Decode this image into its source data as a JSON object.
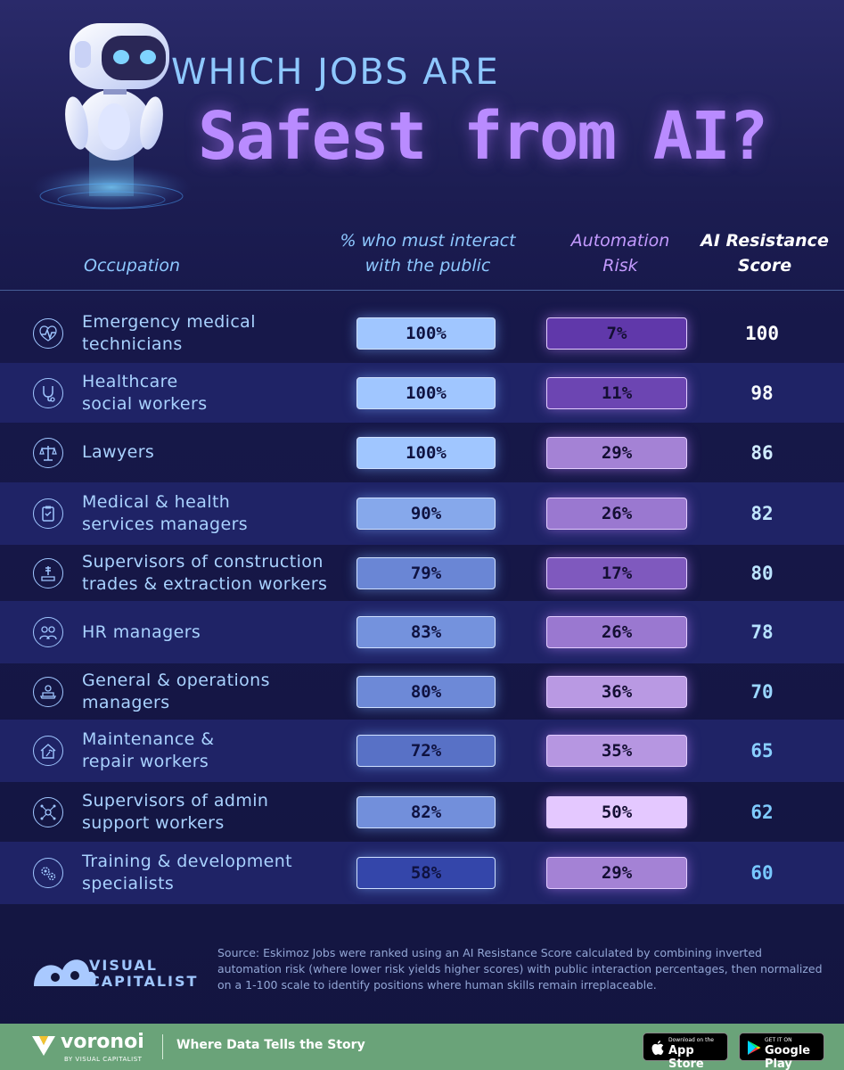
{
  "title": {
    "line1": "WHICH JOBS ARE",
    "line2": "Safest from AI?"
  },
  "headers": {
    "occupation": "Occupation",
    "public": "% who must interact\nwith the public",
    "risk": "Automation\nRisk",
    "score": "AI Resistance\nScore"
  },
  "colors": {
    "background": "#14163a",
    "title_accent": "#b98bff",
    "header_blue": "#8ec8ff",
    "alt_row": "#1f2366",
    "footer": "#6aa379"
  },
  "chart_data": {
    "type": "table",
    "title": "WHICH JOBS ARE Safest from AI?",
    "columns": [
      "Occupation",
      "% who must interact with the public",
      "Automation Risk",
      "AI Resistance Score"
    ],
    "rows": [
      {
        "occupation": "Emergency medical\ntechnicians",
        "public": "100%",
        "public_value": 100,
        "risk": "7%",
        "risk_value": 7,
        "score": "100",
        "score_value": 100,
        "icon": "heartbeat-icon"
      },
      {
        "occupation": "Healthcare\nsocial workers",
        "public": "100%",
        "public_value": 100,
        "risk": "11%",
        "risk_value": 11,
        "score": "98",
        "score_value": 98,
        "icon": "stethoscope-icon"
      },
      {
        "occupation": "Lawyers",
        "public": "100%",
        "public_value": 100,
        "risk": "29%",
        "risk_value": 29,
        "score": "86",
        "score_value": 86,
        "icon": "scales-icon"
      },
      {
        "occupation": "Medical & health\nservices managers",
        "public": "90%",
        "public_value": 90,
        "risk": "26%",
        "risk_value": 26,
        "score": "82",
        "score_value": 82,
        "icon": "clipboard-icon"
      },
      {
        "occupation": "Supervisors of construction\ntrades & extraction workers",
        "public": "79%",
        "public_value": 79,
        "risk": "17%",
        "risk_value": 17,
        "score": "80",
        "score_value": 80,
        "icon": "drill-icon"
      },
      {
        "occupation": "HR managers",
        "public": "83%",
        "public_value": 83,
        "risk": "26%",
        "risk_value": 26,
        "score": "78",
        "score_value": 78,
        "icon": "people-icon"
      },
      {
        "occupation": "General & operations\nmanagers",
        "public": "80%",
        "public_value": 80,
        "risk": "36%",
        "risk_value": 36,
        "score": "70",
        "score_value": 70,
        "icon": "laptop-user-icon"
      },
      {
        "occupation": "Maintenance &\nrepair workers",
        "public": "72%",
        "public_value": 72,
        "risk": "35%",
        "risk_value": 35,
        "score": "65",
        "score_value": 65,
        "icon": "house-wrench-icon"
      },
      {
        "occupation": "Supervisors of admin\nsupport workers",
        "public": "82%",
        "public_value": 82,
        "risk": "50%",
        "risk_value": 50,
        "score": "62",
        "score_value": 62,
        "icon": "network-icon"
      },
      {
        "occupation": "Training & development\nspecialists",
        "public": "58%",
        "public_value": 58,
        "risk": "29%",
        "risk_value": 29,
        "score": "60",
        "score_value": 60,
        "icon": "gears-icon"
      }
    ]
  },
  "source": "Source: Eskimoz Jobs were ranked using an AI Resistance Score calculated by combining inverted automation risk (where lower risk yields higher scores) with public interaction percentages, then normalized on a 1-100 scale to identify positions where human skills remain irreplaceable.",
  "brand": {
    "name_line1": "VISUAL",
    "name_line2": "CAPITALIST"
  },
  "footer": {
    "brand": "voronoi",
    "brand_sub": "BY VISUAL CAPITALIST",
    "tagline": "Where Data Tells the Story",
    "app_store_small": "Download on the",
    "app_store_big": "App Store",
    "google_small": "GET IT ON",
    "google_big": "Google Play"
  }
}
